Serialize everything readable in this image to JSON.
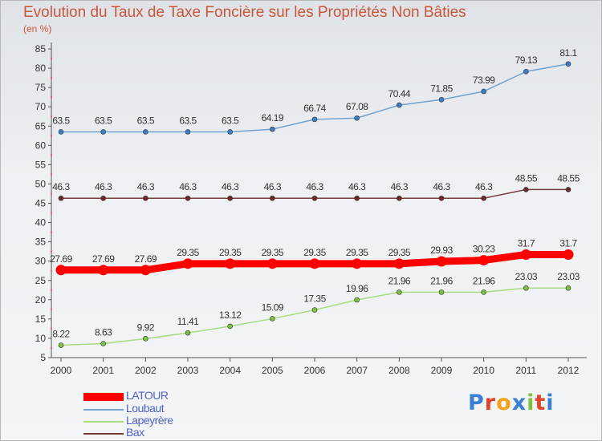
{
  "title": "Evolution du Taux de Taxe Foncière sur les Propriétés Non Bâties",
  "unit": "(en %)",
  "logo": "Proxiti",
  "chart_data": {
    "type": "line",
    "title": "Evolution du Taux de Taxe Foncière sur les Propriétés Non Bâties",
    "ylabel": "(en %)",
    "xlabel": "",
    "x": [
      2000,
      2001,
      2002,
      2003,
      2004,
      2005,
      2006,
      2007,
      2008,
      2009,
      2010,
      2011,
      2012
    ],
    "ylim": [
      5,
      85
    ],
    "yticks": [
      5,
      10,
      15,
      20,
      25,
      30,
      35,
      40,
      45,
      50,
      55,
      60,
      65,
      70,
      75,
      80,
      85
    ],
    "grid": false,
    "legend_position": "bottom-left",
    "series": [
      {
        "name": "Loubaut",
        "color": "#6fa3d1",
        "marker": "#3c7fc1",
        "values": [
          63.5,
          63.5,
          63.5,
          63.5,
          63.5,
          64.19,
          66.74,
          67.08,
          70.44,
          71.85,
          73.99,
          79.13,
          81.1
        ],
        "labels": [
          "63.5",
          "63.5",
          "63.5",
          "63.5",
          "63.5",
          "64.19",
          "66.74",
          "67.08",
          "70.44",
          "71.85",
          "73.99",
          "79.13",
          "81.1"
        ]
      },
      {
        "name": "Bax",
        "color": "#7a3b3b",
        "marker": "#6b2a2a",
        "values": [
          46.3,
          46.3,
          46.3,
          46.3,
          46.3,
          46.3,
          46.3,
          46.3,
          46.3,
          46.3,
          46.3,
          48.55,
          48.55
        ],
        "labels": [
          "46.3",
          "46.3",
          "46.3",
          "46.3",
          "46.3",
          "46.3",
          "46.3",
          "46.3",
          "46.3",
          "46.3",
          "46.3",
          "48.55",
          "48.55"
        ]
      },
      {
        "name": "LATOUR",
        "color": "#ff0000",
        "marker": "#ff0000",
        "values": [
          27.69,
          27.69,
          27.69,
          29.35,
          29.35,
          29.35,
          29.35,
          29.35,
          29.35,
          29.93,
          30.23,
          31.7,
          31.7
        ],
        "labels": [
          "27.69",
          "27.69",
          "27.69",
          "29.35",
          "29.35",
          "29.35",
          "29.35",
          "29.35",
          "29.35",
          "29.93",
          "30.23",
          "31.7",
          "31.7"
        ]
      },
      {
        "name": "Lapeyrère",
        "color": "#a6dc80",
        "marker": "#7dc142",
        "values": [
          8.22,
          8.63,
          9.92,
          11.41,
          13.12,
          15.09,
          17.35,
          19.96,
          21.96,
          21.96,
          21.96,
          23.03,
          23.03
        ],
        "labels": [
          "8.22",
          "8.63",
          "9.92",
          "11.41",
          "13.12",
          "15.09",
          "17.35",
          "19.96",
          "21.96",
          "21.96",
          "21.96",
          "23.03",
          "23.03"
        ]
      }
    ],
    "legend": [
      {
        "name": "LATOUR",
        "color": "#ff0000"
      },
      {
        "name": "Loubaut",
        "color": "#6fa3d1"
      },
      {
        "name": "Lapeyrère",
        "color": "#a6dc80"
      },
      {
        "name": "Bax",
        "color": "#7a3b3b"
      }
    ]
  }
}
